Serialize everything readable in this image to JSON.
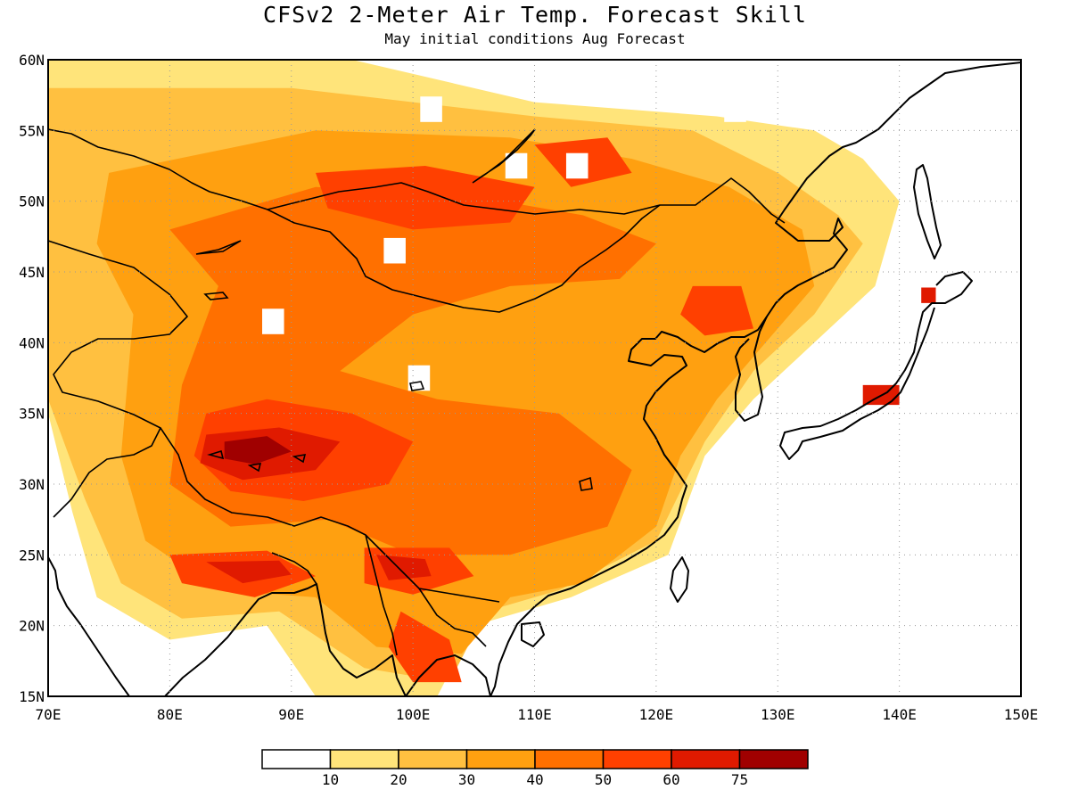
{
  "title": "CFSv2 2-Meter Air Temp. Forecast Skill",
  "subtitle": "May initial conditions  Aug Forecast",
  "map": {
    "lon_range": [
      70,
      150
    ],
    "lat_range": [
      15,
      60
    ],
    "grid": true,
    "lon_labels": [
      "70E",
      "80E",
      "90E",
      "100E",
      "110E",
      "120E",
      "130E",
      "140E",
      "150E"
    ],
    "lat_labels": [
      "60N",
      "55N",
      "50N",
      "45N",
      "40N",
      "35N",
      "30N",
      "25N",
      "20N",
      "15N"
    ]
  },
  "legend": {
    "colors": [
      "#ffffff",
      "#ffe47a",
      "#ffc040",
      "#ffa010",
      "#ff7000",
      "#ff4000",
      "#e01a00",
      "#a00000"
    ],
    "labels": [
      "10",
      "20",
      "30",
      "40",
      "50",
      "60",
      "75"
    ]
  },
  "skill_regions": [
    {
      "level": 1,
      "pts": [
        [
          70,
          60
        ],
        [
          95,
          60
        ],
        [
          110,
          57
        ],
        [
          125,
          56
        ],
        [
          133,
          55
        ],
        [
          137,
          53
        ],
        [
          140,
          50
        ],
        [
          138,
          44
        ],
        [
          133,
          40
        ],
        [
          128,
          36
        ],
        [
          124,
          32
        ],
        [
          121,
          25
        ],
        [
          113,
          22
        ],
        [
          105,
          20
        ],
        [
          102,
          15
        ],
        [
          92,
          15
        ],
        [
          88,
          20
        ],
        [
          80,
          19
        ],
        [
          74,
          22
        ],
        [
          72,
          28
        ],
        [
          70,
          35
        ]
      ]
    },
    {
      "level": 2,
      "pts": [
        [
          70,
          58
        ],
        [
          90,
          58
        ],
        [
          110,
          56
        ],
        [
          123,
          55
        ],
        [
          130,
          52
        ],
        [
          135,
          49
        ],
        [
          137,
          47
        ],
        [
          133,
          42
        ],
        [
          128,
          38
        ],
        [
          124,
          33
        ],
        [
          120,
          26
        ],
        [
          112,
          22.5
        ],
        [
          106,
          21
        ],
        [
          103,
          16
        ],
        [
          96,
          17
        ],
        [
          89,
          21
        ],
        [
          81,
          20.5
        ],
        [
          76,
          23
        ],
        [
          73,
          29
        ],
        [
          70,
          36
        ]
      ]
    },
    {
      "level": 3,
      "pts": [
        [
          75,
          52
        ],
        [
          92,
          55
        ],
        [
          108,
          54.5
        ],
        [
          118,
          53
        ],
        [
          126,
          51
        ],
        [
          132,
          48
        ],
        [
          133,
          44
        ],
        [
          129,
          40
        ],
        [
          125,
          36
        ],
        [
          122,
          32
        ],
        [
          120,
          27
        ],
        [
          114,
          23
        ],
        [
          108,
          22
        ],
        [
          104,
          18
        ],
        [
          97,
          18.5
        ],
        [
          92,
          22
        ],
        [
          84,
          22.5
        ],
        [
          78,
          26
        ],
        [
          76,
          32
        ],
        [
          77,
          42
        ],
        [
          74,
          47
        ]
      ]
    },
    {
      "level": 4,
      "pts": [
        [
          80,
          48
        ],
        [
          92,
          51
        ],
        [
          104,
          50.5
        ],
        [
          114,
          49
        ],
        [
          120,
          47
        ],
        [
          117,
          44.5
        ],
        [
          108,
          44
        ],
        [
          100,
          42
        ],
        [
          94,
          38
        ],
        [
          102,
          36
        ],
        [
          112,
          35
        ],
        [
          118,
          31
        ],
        [
          116,
          27
        ],
        [
          108,
          25
        ],
        [
          100,
          25
        ],
        [
          93,
          27.5
        ],
        [
          85,
          27
        ],
        [
          80,
          30
        ],
        [
          81,
          37
        ],
        [
          84,
          44
        ]
      ]
    },
    {
      "level": 5,
      "pts": [
        [
          83,
          35
        ],
        [
          88,
          36
        ],
        [
          95,
          35
        ],
        [
          100,
          33
        ],
        [
          98,
          30
        ],
        [
          91,
          28.8
        ],
        [
          85,
          29.5
        ],
        [
          82,
          32
        ]
      ]
    },
    {
      "level": 5,
      "pts": [
        [
          92,
          52
        ],
        [
          101,
          52.5
        ],
        [
          110,
          51
        ],
        [
          108,
          48.5
        ],
        [
          100,
          48
        ],
        [
          93,
          49.5
        ]
      ]
    },
    {
      "level": 5,
      "pts": [
        [
          110,
          54
        ],
        [
          116,
          54.5
        ],
        [
          118,
          52
        ],
        [
          113,
          51
        ]
      ]
    },
    {
      "level": 5,
      "pts": [
        [
          123,
          44
        ],
        [
          127,
          44
        ],
        [
          128,
          41
        ],
        [
          124,
          40.5
        ],
        [
          122,
          42
        ]
      ]
    },
    {
      "level": 5,
      "pts": [
        [
          96,
          25.5
        ],
        [
          103,
          25.5
        ],
        [
          105,
          23.5
        ],
        [
          100,
          22.2
        ],
        [
          96,
          23
        ]
      ]
    },
    {
      "level": 5,
      "pts": [
        [
          80,
          25
        ],
        [
          88,
          25.3
        ],
        [
          92,
          23.5
        ],
        [
          87,
          22
        ],
        [
          81,
          23
        ]
      ]
    },
    {
      "level": 5,
      "pts": [
        [
          99,
          21
        ],
        [
          103,
          19
        ],
        [
          104,
          16
        ],
        [
          100,
          16
        ],
        [
          98,
          18.5
        ]
      ]
    },
    {
      "level": 6,
      "pts": [
        [
          83,
          33.5
        ],
        [
          89,
          34
        ],
        [
          94,
          33
        ],
        [
          92,
          31
        ],
        [
          86,
          30.3
        ],
        [
          82.5,
          31.5
        ]
      ]
    },
    {
      "level": 6,
      "pts": [
        [
          97,
          25
        ],
        [
          101,
          24.7
        ],
        [
          101.5,
          23.5
        ],
        [
          98,
          23.2
        ]
      ]
    },
    {
      "level": 6,
      "pts": [
        [
          83,
          24.5
        ],
        [
          89,
          24.6
        ],
        [
          90,
          23.6
        ],
        [
          86,
          23
        ]
      ]
    },
    {
      "level": 6,
      "pts": [
        [
          141.8,
          43.9
        ],
        [
          143,
          43.9
        ],
        [
          143,
          42.8
        ],
        [
          141.8,
          42.8
        ]
      ]
    },
    {
      "level": 6,
      "pts": [
        [
          137,
          37
        ],
        [
          140,
          37
        ],
        [
          140,
          35.6
        ],
        [
          137,
          35.6
        ]
      ]
    },
    {
      "level": 7,
      "pts": [
        [
          84.5,
          33
        ],
        [
          88,
          33.4
        ],
        [
          90,
          32.3
        ],
        [
          87,
          31.4
        ],
        [
          84.5,
          31.8
        ]
      ]
    }
  ],
  "blank_cells": [
    [
      98.5,
      46.5
    ],
    [
      88.5,
      41.5
    ],
    [
      100.5,
      37.5
    ],
    [
      101.5,
      56.5
    ],
    [
      108.5,
      52.5
    ],
    [
      113.5,
      52.5
    ],
    [
      130.5,
      57.5
    ],
    [
      126.5,
      56.5
    ]
  ]
}
